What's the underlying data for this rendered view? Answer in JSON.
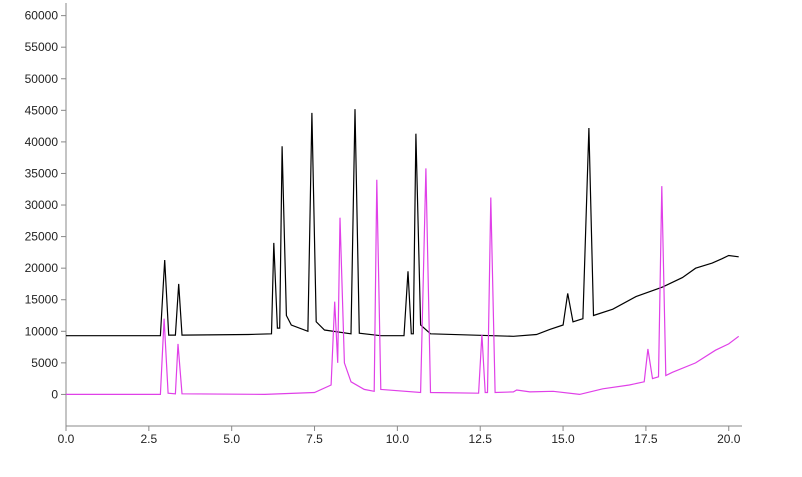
{
  "chart_data": {
    "type": "line",
    "xlim": [
      0,
      20.4
    ],
    "ylim": [
      -5000,
      62000
    ],
    "xticks": [
      {
        "value": 0,
        "label": "0.0"
      },
      {
        "value": 2.5,
        "label": "2.5"
      },
      {
        "value": 5,
        "label": "5.0"
      },
      {
        "value": 7.5,
        "label": "7.5"
      },
      {
        "value": 10,
        "label": "10.0"
      },
      {
        "value": 12.5,
        "label": "12.5"
      },
      {
        "value": 15,
        "label": "15.0"
      },
      {
        "value": 17.5,
        "label": "17.5"
      },
      {
        "value": 20,
        "label": "20.0"
      }
    ],
    "yticks": [
      0,
      5000,
      10000,
      15000,
      20000,
      25000,
      30000,
      35000,
      40000,
      45000,
      50000,
      55000,
      60000
    ],
    "grid": false,
    "series": [
      {
        "color": "#000000",
        "x": [
          0,
          2.85,
          2.98,
          3.1,
          3.3,
          3.4,
          3.5,
          5.5,
          6.2,
          6.27,
          6.38,
          6.45,
          6.52,
          6.65,
          6.8,
          7.3,
          7.42,
          7.55,
          7.8,
          8.6,
          8.72,
          8.85,
          9.5,
          10.2,
          10.32,
          10.42,
          10.48,
          10.56,
          10.7,
          11.0,
          13.5,
          14.2,
          14.6,
          15.0,
          15.14,
          15.3,
          15.6,
          15.78,
          15.92,
          16.5,
          17.2,
          18.0,
          18.6,
          19.0,
          19.5,
          19.8,
          20.0,
          20.3
        ],
        "values": [
          9300,
          9300,
          21300,
          9400,
          9400,
          17500,
          9400,
          9500,
          9600,
          24000,
          10500,
          10500,
          39300,
          12500,
          11000,
          10000,
          44600,
          11500,
          10200,
          9600,
          45200,
          9700,
          9300,
          9300,
          19500,
          9600,
          9600,
          41300,
          11000,
          9600,
          9200,
          9500,
          10300,
          11000,
          16000,
          11500,
          12000,
          42200,
          12500,
          13500,
          15500,
          17000,
          18500,
          20000,
          20800,
          21500,
          22000,
          21800
        ]
      },
      {
        "color": "#e040e8",
        "x": [
          0,
          2.85,
          2.96,
          3.08,
          3.3,
          3.38,
          3.5,
          6.0,
          7.5,
          8.0,
          8.11,
          8.2,
          8.27,
          8.4,
          8.6,
          9.0,
          9.3,
          9.38,
          9.5,
          10.7,
          10.86,
          11.0,
          12.45,
          12.55,
          12.65,
          12.72,
          12.82,
          12.95,
          13.5,
          13.6,
          14.0,
          14.7,
          15.5,
          16.2,
          17.0,
          17.45,
          17.56,
          17.7,
          17.88,
          17.98,
          18.1,
          18.3,
          19.0,
          19.6,
          20.0,
          20.3
        ],
        "values": [
          0,
          0,
          12000,
          200,
          100,
          8000,
          100,
          0,
          300,
          1500,
          14700,
          5000,
          28000,
          5000,
          2000,
          800,
          500,
          34000,
          800,
          300,
          35800,
          300,
          200,
          9500,
          300,
          300,
          31200,
          300,
          400,
          700,
          400,
          500,
          0,
          900,
          1500,
          2000,
          7200,
          2500,
          2800,
          33000,
          3000,
          3500,
          5000,
          7000,
          8000,
          9200
        ]
      }
    ]
  }
}
